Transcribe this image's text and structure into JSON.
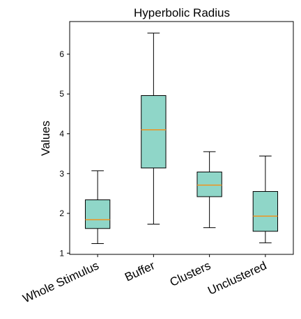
{
  "chart_data": {
    "type": "box",
    "title": "Hyperbolic Radius",
    "xlabel": "",
    "ylabel": "Values",
    "ylim": [
      0.97,
      6.82
    ],
    "yticks": [
      1,
      2,
      3,
      4,
      5,
      6
    ],
    "grid": false,
    "box_color": "#8fd6c8",
    "median_color": "#f0931e",
    "categories": [
      "Whole Stimulus",
      "Buffer",
      "Clusters",
      "Unclustered"
    ],
    "boxes": [
      {
        "label": "Whole Stimulus",
        "whisker_low": 1.24,
        "q1": 1.62,
        "median": 1.84,
        "q3": 2.34,
        "whisker_high": 3.07
      },
      {
        "label": "Buffer",
        "whisker_low": 1.73,
        "q1": 3.14,
        "median": 4.1,
        "q3": 4.96,
        "whisker_high": 6.53
      },
      {
        "label": "Clusters",
        "whisker_low": 1.64,
        "q1": 2.42,
        "median": 2.71,
        "q3": 3.04,
        "whisker_high": 3.55
      },
      {
        "label": "Unclustered",
        "whisker_low": 1.26,
        "q1": 1.55,
        "median": 1.93,
        "q3": 2.55,
        "whisker_high": 3.44
      }
    ]
  }
}
